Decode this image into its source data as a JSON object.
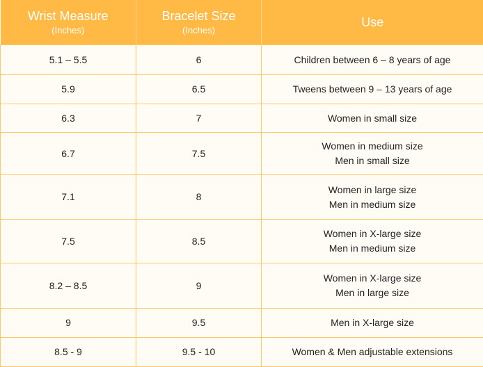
{
  "header": {
    "col1": {
      "title": "Wrist Measure",
      "sub": "(Inches)"
    },
    "col2": {
      "title": "Bracelet Size",
      "sub": "(Inches)"
    },
    "col3": {
      "title": "Use"
    }
  },
  "rows": [
    {
      "wrist": "5.1 – 5.5",
      "size": "6",
      "use": [
        "Children between 6 – 8 years of age"
      ]
    },
    {
      "wrist": "5.9",
      "size": "6.5",
      "use": [
        "Tweens between 9 – 13 years of age"
      ]
    },
    {
      "wrist": "6.3",
      "size": "7",
      "use": [
        "Women in small size"
      ]
    },
    {
      "wrist": "6.7",
      "size": "7.5",
      "use": [
        "Women in medium size",
        "Men in small size"
      ]
    },
    {
      "wrist": "7.1",
      "size": "8",
      "use": [
        "Women in large size",
        "Men in medium size"
      ]
    },
    {
      "wrist": "7.5",
      "size": "8.5",
      "use": [
        "Women in X-large size",
        "Men in medium size"
      ]
    },
    {
      "wrist": "8.2 – 8.5",
      "size": "9",
      "use": [
        "Women in X-large size",
        "Men in large size"
      ]
    },
    {
      "wrist": "9",
      "size": "9.5",
      "use": [
        "Men in X-large size"
      ]
    },
    {
      "wrist": "8.5 - 9",
      "size": "9.5 - 10",
      "use": [
        "Women & Men adjustable extensions"
      ]
    }
  ]
}
